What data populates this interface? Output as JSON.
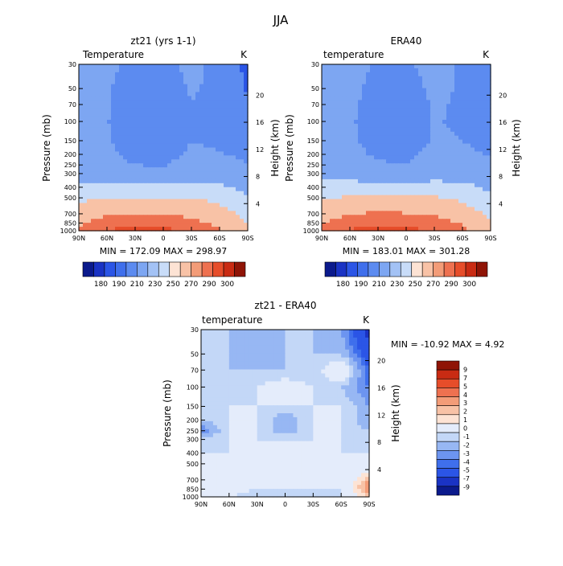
{
  "figure_title": "JJA",
  "colors": {
    "palette_model": [
      "#0b1a8c",
      "#1a33c4",
      "#2b55e6",
      "#3f6fec",
      "#5c8bf0",
      "#7da6f2",
      "#a3c2f5",
      "#c8dcf8",
      "#fde3d4",
      "#f8c2a6",
      "#f39c78",
      "#ee7150",
      "#e64d2a",
      "#c92b13",
      "#8f1406"
    ],
    "palette_diff": [
      "#0b1a8c",
      "#1a33c4",
      "#2b55e6",
      "#3f6fec",
      "#6c94f0",
      "#97b7f3",
      "#c3d7f7",
      "#e4ecfb",
      "#fde3d4",
      "#f8c2a6",
      "#f39c78",
      "#ee7150",
      "#e64d2a",
      "#c92b13",
      "#8f1406"
    ]
  },
  "panels": {
    "model": {
      "title": "zt21 (yrs 1-1)",
      "var_label": "Temperature",
      "units": "K",
      "min_max": "MIN = 172.09   MAX = 298.97",
      "ylabel": "Pressure (mb)",
      "ylabel_right": "Height (km)",
      "colorbar_labels": [
        "180",
        "190",
        "210",
        "230",
        "250",
        "270",
        "290",
        "300"
      ]
    },
    "era": {
      "title": "ERA40",
      "var_label": "temperature",
      "units": "K",
      "min_max": "MIN = 183.01   MAX = 301.28",
      "ylabel": "Pressure (mb)",
      "ylabel_right": "Height (km)",
      "colorbar_labels": [
        "180",
        "190",
        "210",
        "230",
        "250",
        "270",
        "290",
        "300"
      ]
    },
    "diff": {
      "title": "zt21 - ERA40",
      "var_label": "temperature",
      "units": "K",
      "min_max": "MIN = -10.92   MAX =   4.92",
      "ylabel": "Pressure (mb)",
      "ylabel_right": "Height (km)",
      "colorbar_labels": [
        "9",
        "7",
        "5",
        "4",
        "3",
        "2",
        "1",
        "0",
        "-1",
        "-2",
        "-3",
        "-4",
        "-5",
        "-7",
        "-9"
      ]
    }
  },
  "axes": {
    "x_ticks": [
      "90N",
      "60N",
      "30N",
      "0",
      "30S",
      "60S",
      "90S"
    ],
    "pressure_ticks": [
      "30",
      "50",
      "70",
      "100",
      "150",
      "200",
      "250",
      "300",
      "400",
      "500",
      "700",
      "850",
      "1000"
    ],
    "height_ticks": [
      "20",
      "16",
      "12",
      "8",
      "4"
    ]
  },
  "chart_data": [
    {
      "type": "heatmap",
      "title": "zt21 (yrs 1-1)",
      "variable": "Temperature",
      "units": "K",
      "xlabel": "",
      "ylabel": "Pressure (mb)",
      "ylabel_right": "Height (km)",
      "x": [
        "90N",
        "60N",
        "30N",
        "0",
        "30S",
        "60S",
        "90S"
      ],
      "y": [
        30,
        50,
        70,
        100,
        150,
        200,
        250,
        300,
        400,
        500,
        700,
        850,
        1000
      ],
      "levels": [
        180,
        190,
        210,
        230,
        250,
        270,
        290,
        300
      ],
      "min": 172.09,
      "max": 298.97,
      "values": [
        [
          222,
          214,
          205,
          205,
          215,
          205,
          185
        ],
        [
          222,
          212,
          200,
          200,
          212,
          205,
          188
        ],
        [
          222,
          212,
          198,
          198,
          210,
          205,
          192
        ],
        [
          221,
          211,
          196,
          195,
          209,
          205,
          196
        ],
        [
          220,
          212,
          200,
          199,
          210,
          207,
          202
        ],
        [
          220,
          214,
          205,
          204,
          213,
          211,
          207
        ],
        [
          221,
          216,
          210,
          209,
          216,
          215,
          211
        ],
        [
          224,
          220,
          215,
          214,
          220,
          220,
          216
        ],
        [
          234,
          236,
          233,
          233,
          235,
          233,
          224
        ],
        [
          245,
          251,
          250,
          250,
          250,
          245,
          232
        ],
        [
          258,
          268,
          270,
          269,
          266,
          258,
          244
        ],
        [
          266,
          280,
          285,
          283,
          275,
          266,
          250
        ],
        [
          272,
          290,
          298,
          296,
          284,
          272,
          256
        ]
      ]
    },
    {
      "type": "heatmap",
      "title": "ERA40",
      "variable": "temperature",
      "units": "K",
      "xlabel": "",
      "ylabel": "Pressure (mb)",
      "ylabel_right": "Height (km)",
      "x": [
        "90N",
        "60N",
        "30N",
        "0",
        "30S",
        "60S",
        "90S"
      ],
      "y": [
        30,
        50,
        70,
        100,
        150,
        200,
        250,
        300,
        400,
        500,
        700,
        850,
        1000
      ],
      "levels": [
        180,
        190,
        210,
        230,
        250,
        270,
        290,
        300
      ],
      "min": 183.01,
      "max": 301.28,
      "values": [
        [
          225,
          218,
          208,
          207,
          217,
          208,
          192
        ],
        [
          225,
          216,
          203,
          202,
          214,
          208,
          195
        ],
        [
          224,
          215,
          200,
          200,
          212,
          208,
          198
        ],
        [
          223,
          213,
          198,
          197,
          211,
          208,
          200
        ],
        [
          222,
          214,
          202,
          201,
          212,
          210,
          205
        ],
        [
          222,
          216,
          207,
          206,
          215,
          213,
          209
        ],
        [
          223,
          218,
          212,
          211,
          218,
          217,
          213
        ],
        [
          226,
          222,
          217,
          216,
          222,
          222,
          218
        ],
        [
          236,
          238,
          235,
          235,
          237,
          235,
          226
        ],
        [
          247,
          253,
          252,
          252,
          252,
          247,
          234
        ],
        [
          260,
          270,
          272,
          271,
          268,
          260,
          246
        ],
        [
          268,
          282,
          287,
          285,
          277,
          268,
          252
        ],
        [
          274,
          292,
          300,
          298,
          286,
          274,
          258
        ]
      ]
    },
    {
      "type": "heatmap",
      "title": "zt21 - ERA40",
      "variable": "temperature",
      "units": "K",
      "xlabel": "",
      "ylabel": "Pressure (mb)",
      "ylabel_right": "Height (km)",
      "x": [
        "90N",
        "60N",
        "30N",
        "0",
        "30S",
        "60S",
        "90S"
      ],
      "y": [
        30,
        50,
        70,
        100,
        150,
        200,
        250,
        300,
        400,
        500,
        700,
        850,
        1000
      ],
      "levels": [
        -9,
        -7,
        -5,
        -4,
        -3,
        -2,
        -1,
        0,
        1,
        2,
        3,
        4,
        5,
        7,
        9
      ],
      "min": -10.92,
      "max": 4.92,
      "values": [
        [
          -2,
          -2,
          -3,
          -2,
          -2,
          -3,
          -8
        ],
        [
          -2,
          -2,
          -3,
          -2,
          -2,
          -2,
          -6
        ],
        [
          -2,
          -2,
          -2,
          -2,
          -2,
          1,
          -5
        ],
        [
          -1,
          -2,
          -1,
          0,
          -1,
          -2,
          -4
        ],
        [
          -2,
          -1,
          -1,
          -1,
          -1,
          -1,
          -3
        ],
        [
          -2,
          -1,
          -1,
          -3,
          -1,
          -1,
          -3
        ],
        [
          -4,
          -1,
          -1,
          -3,
          -1,
          -1,
          -2
        ],
        [
          -2,
          -1,
          -1,
          -1,
          -1,
          -1,
          -2
        ],
        [
          -1,
          -1,
          -1,
          -1,
          -1,
          -1,
          -1
        ],
        [
          -1,
          -1,
          -1,
          -1,
          -1,
          -1,
          -1
        ],
        [
          1,
          -1,
          -1,
          -1,
          -1,
          -1,
          3
        ],
        [
          1,
          0,
          -1,
          -1,
          -1,
          -1,
          4
        ],
        [
          0,
          -1,
          -2,
          -2,
          -2,
          -1,
          2
        ]
      ]
    }
  ]
}
